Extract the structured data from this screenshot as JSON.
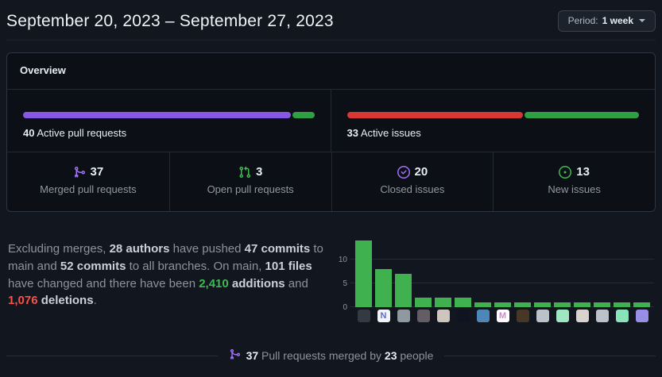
{
  "header": {
    "title": "September 20, 2023 – September 27, 2023",
    "period_label": "Period:",
    "period_value": "1 week"
  },
  "overview": {
    "title": "Overview",
    "pull_requests_bar": {
      "count": "40",
      "label": " Active pull requests",
      "segments": [
        {
          "name": "merged",
          "color": "#8957e5",
          "pct": 92.5
        },
        {
          "name": "open",
          "color": "#2ea043",
          "pct": 7.5
        }
      ]
    },
    "issues_bar": {
      "count": "33",
      "label": " Active issues",
      "segments": [
        {
          "name": "closed",
          "color": "#d83733",
          "pct": 60.6
        },
        {
          "name": "new",
          "color": "#2ea043",
          "pct": 39.4
        }
      ]
    },
    "stats": [
      {
        "icon": "git-merge-icon",
        "value": "37",
        "label": "Merged pull requests"
      },
      {
        "icon": "git-pull-request-icon",
        "value": "3",
        "label": "Open pull requests"
      },
      {
        "icon": "issue-closed-icon",
        "value": "20",
        "label": "Closed issues"
      },
      {
        "icon": "issue-opened-icon",
        "value": "13",
        "label": "New issues"
      }
    ]
  },
  "summary": {
    "segments": [
      {
        "text": "Excluding merges, ",
        "style": "muted"
      },
      {
        "text": "28 authors",
        "style": "strong"
      },
      {
        "text": " have pushed ",
        "style": "muted"
      },
      {
        "text": "47 commits",
        "style": "strong"
      },
      {
        "text": " to main and ",
        "style": "muted"
      },
      {
        "text": "52 commits",
        "style": "strong"
      },
      {
        "text": " to all branches. On main, ",
        "style": "muted"
      },
      {
        "text": "101 files",
        "style": "strong"
      },
      {
        "text": " have changed and there have been ",
        "style": "muted"
      },
      {
        "text": "2,410",
        "style": "additions"
      },
      {
        "text": " ",
        "style": "muted"
      },
      {
        "text": "additions",
        "style": "strong"
      },
      {
        "text": " and ",
        "style": "muted"
      },
      {
        "text": "1,076",
        "style": "deletions"
      },
      {
        "text": " ",
        "style": "muted"
      },
      {
        "text": "deletions",
        "style": "strong"
      },
      {
        "text": ".",
        "style": "muted"
      }
    ]
  },
  "chart_data": {
    "type": "bar",
    "title": "",
    "xlabel": "",
    "ylabel": "",
    "values": [
      14,
      8,
      7,
      2,
      2,
      2,
      1,
      1,
      1,
      1,
      1,
      1,
      1,
      1,
      1
    ],
    "yticks": [
      0,
      5,
      10
    ],
    "ylim": [
      0,
      14.5
    ],
    "grid": true,
    "bar_color": "#3fb14e",
    "avatars": [
      {
        "desc": "user-photo-dark",
        "bg": "#343a41",
        "char": "",
        "fg": ""
      },
      {
        "desc": "letter-n-logo",
        "bg": "#f2f4f7",
        "char": "N",
        "fg": "#5871c9"
      },
      {
        "desc": "user-photo-gray",
        "bg": "#90999f",
        "char": "",
        "fg": ""
      },
      {
        "desc": "user-photo-hood",
        "bg": "#655d66",
        "char": "",
        "fg": ""
      },
      {
        "desc": "user-photo-woman",
        "bg": "#cfc5bf",
        "char": "",
        "fg": ""
      },
      {
        "desc": "night-moon-photo",
        "bg": "#0f1420",
        "char": "",
        "fg": ""
      },
      {
        "desc": "user-photo-hat",
        "bg": "#4f86b8",
        "char": "",
        "fg": ""
      },
      {
        "desc": "letter-m-identicon",
        "bg": "#ffffff",
        "char": "M",
        "fg": "#d782d9"
      },
      {
        "desc": "user-photo-glow",
        "bg": "#473826",
        "char": "",
        "fg": ""
      },
      {
        "desc": "default-octocat",
        "bg": "#bcc2c9",
        "char": "",
        "fg": ""
      },
      {
        "desc": "mint-identicon",
        "bg": "#9fe7c0",
        "char": "",
        "fg": ""
      },
      {
        "desc": "user-photo-white",
        "bg": "#d8d3cd",
        "char": "",
        "fg": ""
      },
      {
        "desc": "default-octocat-2",
        "bg": "#bcc2c9",
        "char": "",
        "fg": ""
      },
      {
        "desc": "mint-identicon-2",
        "bg": "#8ae4ba",
        "char": "",
        "fg": ""
      },
      {
        "desc": "purple-identicon",
        "bg": "#998ee6",
        "char": "",
        "fg": ""
      }
    ]
  },
  "merged_by": {
    "count": "37",
    "middle": "Pull requests merged by",
    "people": "23",
    "suffix": "people"
  }
}
